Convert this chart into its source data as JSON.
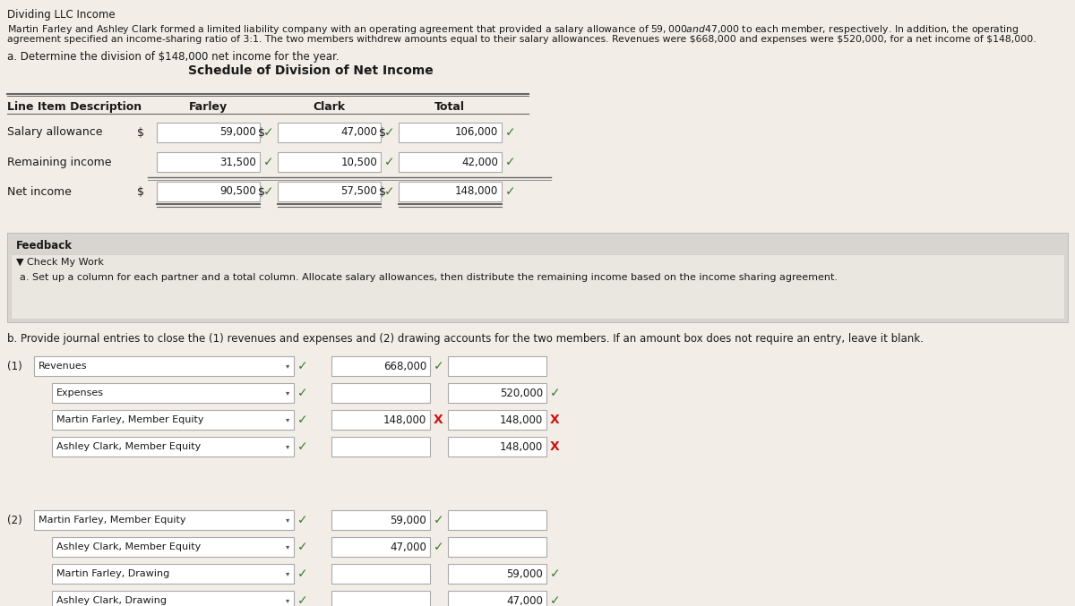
{
  "title": "Dividing LLC Income",
  "intro_line1": "Martin Farley and Ashley Clark formed a limited liability company with an operating agreement that provided a salary allowance of $59,000 and $47,000 to each member, respectively. In addition, the operating",
  "intro_line2": "agreement specified an income-sharing ratio of 3:1. The two members withdrew amounts equal to their salary allowances. Revenues were $668,000 and expenses were $520,000, for a net income of $148,000.",
  "part_a_label": "a. Determine the division of $148,000 net income for the year.",
  "schedule_title": "Schedule of Division of Net Income",
  "table_headers": [
    "Line Item Description",
    "Farley",
    "Clark",
    "Total"
  ],
  "table_rows": [
    {
      "label": "Salary allowance",
      "farley_prefix": "$",
      "farley": "59,000",
      "clark_prefix": "$",
      "clark": "47,000",
      "total_prefix": "$",
      "total": "106,000",
      "farley_check": true,
      "clark_check": true,
      "total_check": true,
      "double_above": false,
      "double_below": false
    },
    {
      "label": "Remaining income",
      "farley_prefix": "",
      "farley": "31,500",
      "clark_prefix": "",
      "clark": "10,500",
      "total_prefix": "",
      "total": "42,000",
      "farley_check": true,
      "clark_check": true,
      "total_check": true,
      "double_above": false,
      "double_below": false
    },
    {
      "label": "Net income",
      "farley_prefix": "$",
      "farley": "90,500",
      "clark_prefix": "$",
      "clark": "57,500",
      "total_prefix": "$",
      "total": "148,000",
      "farley_check": true,
      "clark_check": true,
      "total_check": true,
      "double_above": true,
      "double_below": true
    }
  ],
  "feedback_label": "Feedback",
  "check_label": "▼ Check My Work",
  "feedback_text": "a. Set up a column for each partner and a total column. Allocate salary allowances, then distribute the remaining income based on the income sharing agreement.",
  "part_b_label": "b. Provide journal entries to close the (1) revenues and expenses and (2) drawing accounts for the two members. If an amount box does not require an entry, leave it blank.",
  "journal_entries": [
    {
      "num": "(1)",
      "rows": [
        {
          "account": "Revenues",
          "indent": false,
          "check": true,
          "debit": "668,000",
          "debit_mark": "check",
          "credit": "",
          "credit_mark": "none"
        },
        {
          "account": "Expenses",
          "indent": true,
          "check": true,
          "debit": "",
          "debit_mark": "none",
          "credit": "520,000",
          "credit_mark": "check"
        },
        {
          "account": "Martin Farley, Member Equity",
          "indent": true,
          "check": true,
          "debit": "148,000",
          "debit_mark": "X",
          "credit": "148,000",
          "credit_mark": "X"
        },
        {
          "account": "Ashley Clark, Member Equity",
          "indent": true,
          "check": true,
          "debit": "",
          "debit_mark": "none",
          "credit": "148,000",
          "credit_mark": "X"
        }
      ]
    },
    {
      "num": "(2)",
      "rows": [
        {
          "account": "Martin Farley, Member Equity",
          "indent": false,
          "check": true,
          "debit": "59,000",
          "debit_mark": "check",
          "credit": "",
          "credit_mark": "none"
        },
        {
          "account": "Ashley Clark, Member Equity",
          "indent": true,
          "check": true,
          "debit": "47,000",
          "debit_mark": "check",
          "credit": "",
          "credit_mark": "none"
        },
        {
          "account": "Martin Farley, Drawing",
          "indent": true,
          "check": true,
          "debit": "",
          "debit_mark": "none",
          "credit": "59,000",
          "credit_mark": "check"
        },
        {
          "account": "Ashley Clark, Drawing",
          "indent": true,
          "check": true,
          "debit": "",
          "debit_mark": "none",
          "credit": "47,000",
          "credit_mark": "check"
        }
      ]
    }
  ],
  "bg_top": "#f2ede6",
  "bg_feedback": "#d8d4cf",
  "bg_inner_feedback": "#eae6e0",
  "bg_bottom": "#f2ede6",
  "green_check": "#3d7a32",
  "red_x": "#cc1111",
  "text_color": "#1a1a1a",
  "box_border": "#aaaaaa",
  "line_color": "#666666"
}
